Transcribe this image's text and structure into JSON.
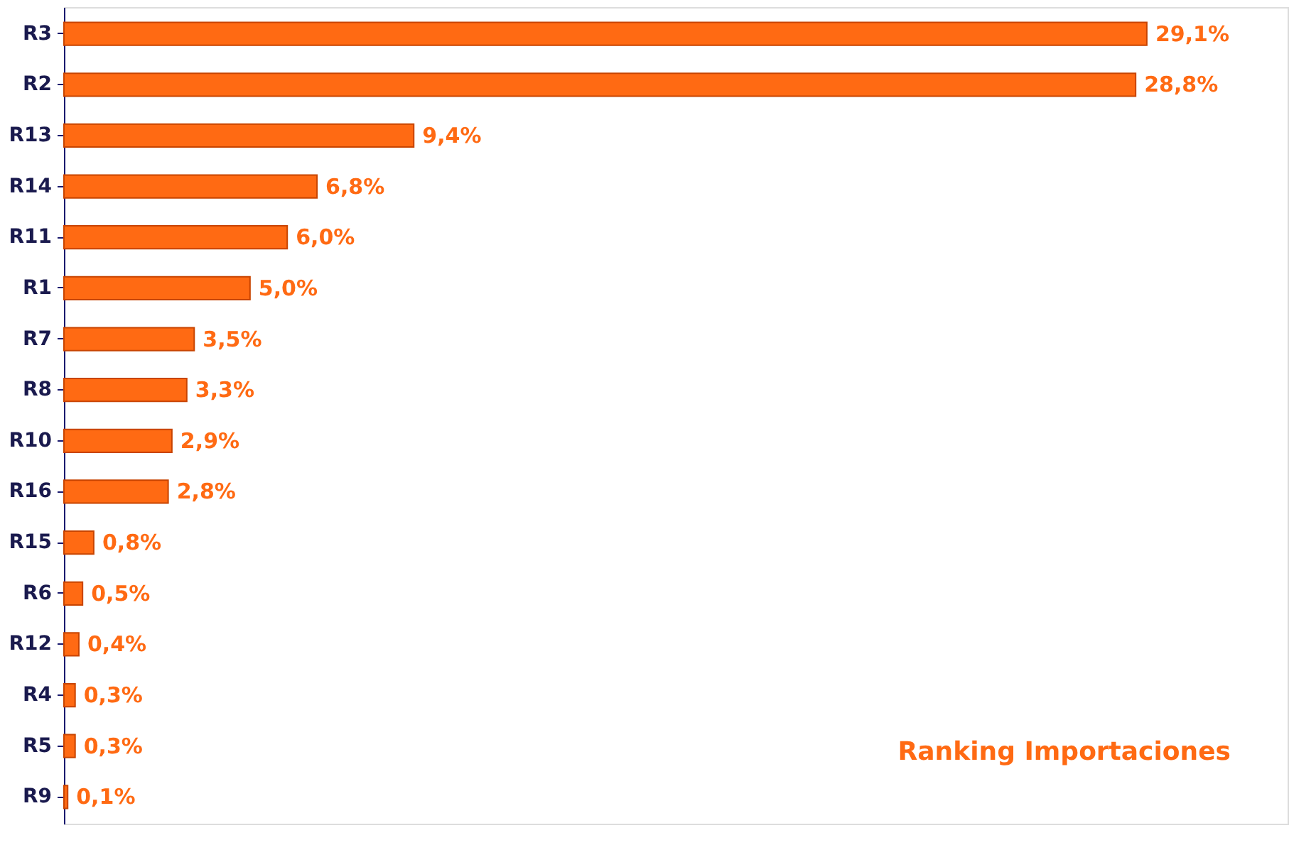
{
  "chart_data": {
    "type": "bar",
    "orientation": "horizontal",
    "title": "Ranking Importaciones",
    "categories": [
      "R3",
      "R2",
      "R13",
      "R14",
      "R11",
      "R1",
      "R7",
      "R8",
      "R10",
      "R16",
      "R15",
      "R6",
      "R12",
      "R4",
      "R5",
      "R9"
    ],
    "values": [
      29.1,
      28.8,
      9.4,
      6.8,
      6.0,
      5.0,
      3.5,
      3.3,
      2.9,
      2.8,
      0.8,
      0.5,
      0.4,
      0.3,
      0.3,
      0.1
    ],
    "value_labels": [
      "29,1%",
      "28,8%",
      "9,4%",
      "6,8%",
      "6,0%",
      "5,0%",
      "3,5%",
      "3,3%",
      "2,9%",
      "2,8%",
      "0,8%",
      "0,5%",
      "0,4%",
      "0,3%",
      "0,3%",
      "0,1%"
    ],
    "color": "#ff6a13",
    "grid": false,
    "tick_labels": "y"
  }
}
